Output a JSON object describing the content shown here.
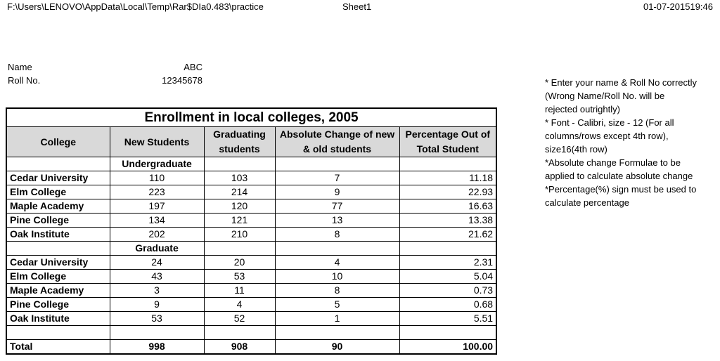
{
  "header": {
    "path": "F:\\Users\\LENOVO\\AppData\\Local\\Temp\\Rar$DIa0.483\\practice",
    "sheet": "Sheet1",
    "datetime": "01-07-201519:46"
  },
  "info": {
    "name_label": "Name",
    "name_value": "ABC",
    "roll_label": "Roll No.",
    "roll_value": "12345678"
  },
  "table": {
    "title": "Enrollment in local colleges, 2005",
    "columns": [
      "College",
      "New Students",
      "Graduating students",
      "Absolute Change of new & old students",
      "Percentage Out of Total Student"
    ],
    "undergraduate_label": "Undergraduate",
    "graduate_label": "Graduate",
    "undergraduate": [
      {
        "college": "Cedar University",
        "new": "110",
        "grad": "103",
        "change": "7",
        "pct": "11.18"
      },
      {
        "college": "Elm College",
        "new": "223",
        "grad": "214",
        "change": "9",
        "pct": "22.93"
      },
      {
        "college": "Maple Academy",
        "new": "197",
        "grad": "120",
        "change": "77",
        "pct": "16.63"
      },
      {
        "college": "Pine College",
        "new": "134",
        "grad": "121",
        "change": "13",
        "pct": "13.38"
      },
      {
        "college": "Oak Institute",
        "new": "202",
        "grad": "210",
        "change": "8",
        "pct": "21.62"
      }
    ],
    "graduate": [
      {
        "college": "Cedar University",
        "new": "24",
        "grad": "20",
        "change": "4",
        "pct": "2.31"
      },
      {
        "college": "Elm College",
        "new": "43",
        "grad": "53",
        "change": "10",
        "pct": "5.04"
      },
      {
        "college": "Maple Academy",
        "new": "3",
        "grad": "11",
        "change": "8",
        "pct": "0.73"
      },
      {
        "college": "Pine College",
        "new": "9",
        "grad": "4",
        "change": "5",
        "pct": "0.68"
      },
      {
        "college": "Oak Institute",
        "new": "53",
        "grad": "52",
        "change": "1",
        "pct": "5.51"
      }
    ],
    "total": {
      "label": "Total",
      "new": "998",
      "grad": "908",
      "change": "90",
      "pct": "100.00"
    }
  },
  "notes": [
    "* Enter your name & Roll No correctly (Wrong Name/Roll No. will be rejected outrightly)",
    "* Font - Calibri, size - 12 (For all columns/rows except 4th row), size16(4th row)",
    "*Absolute change Formulae to be applied to calculate absolute change",
    "*Percentage(%) sign must be used to calculate percentage"
  ]
}
